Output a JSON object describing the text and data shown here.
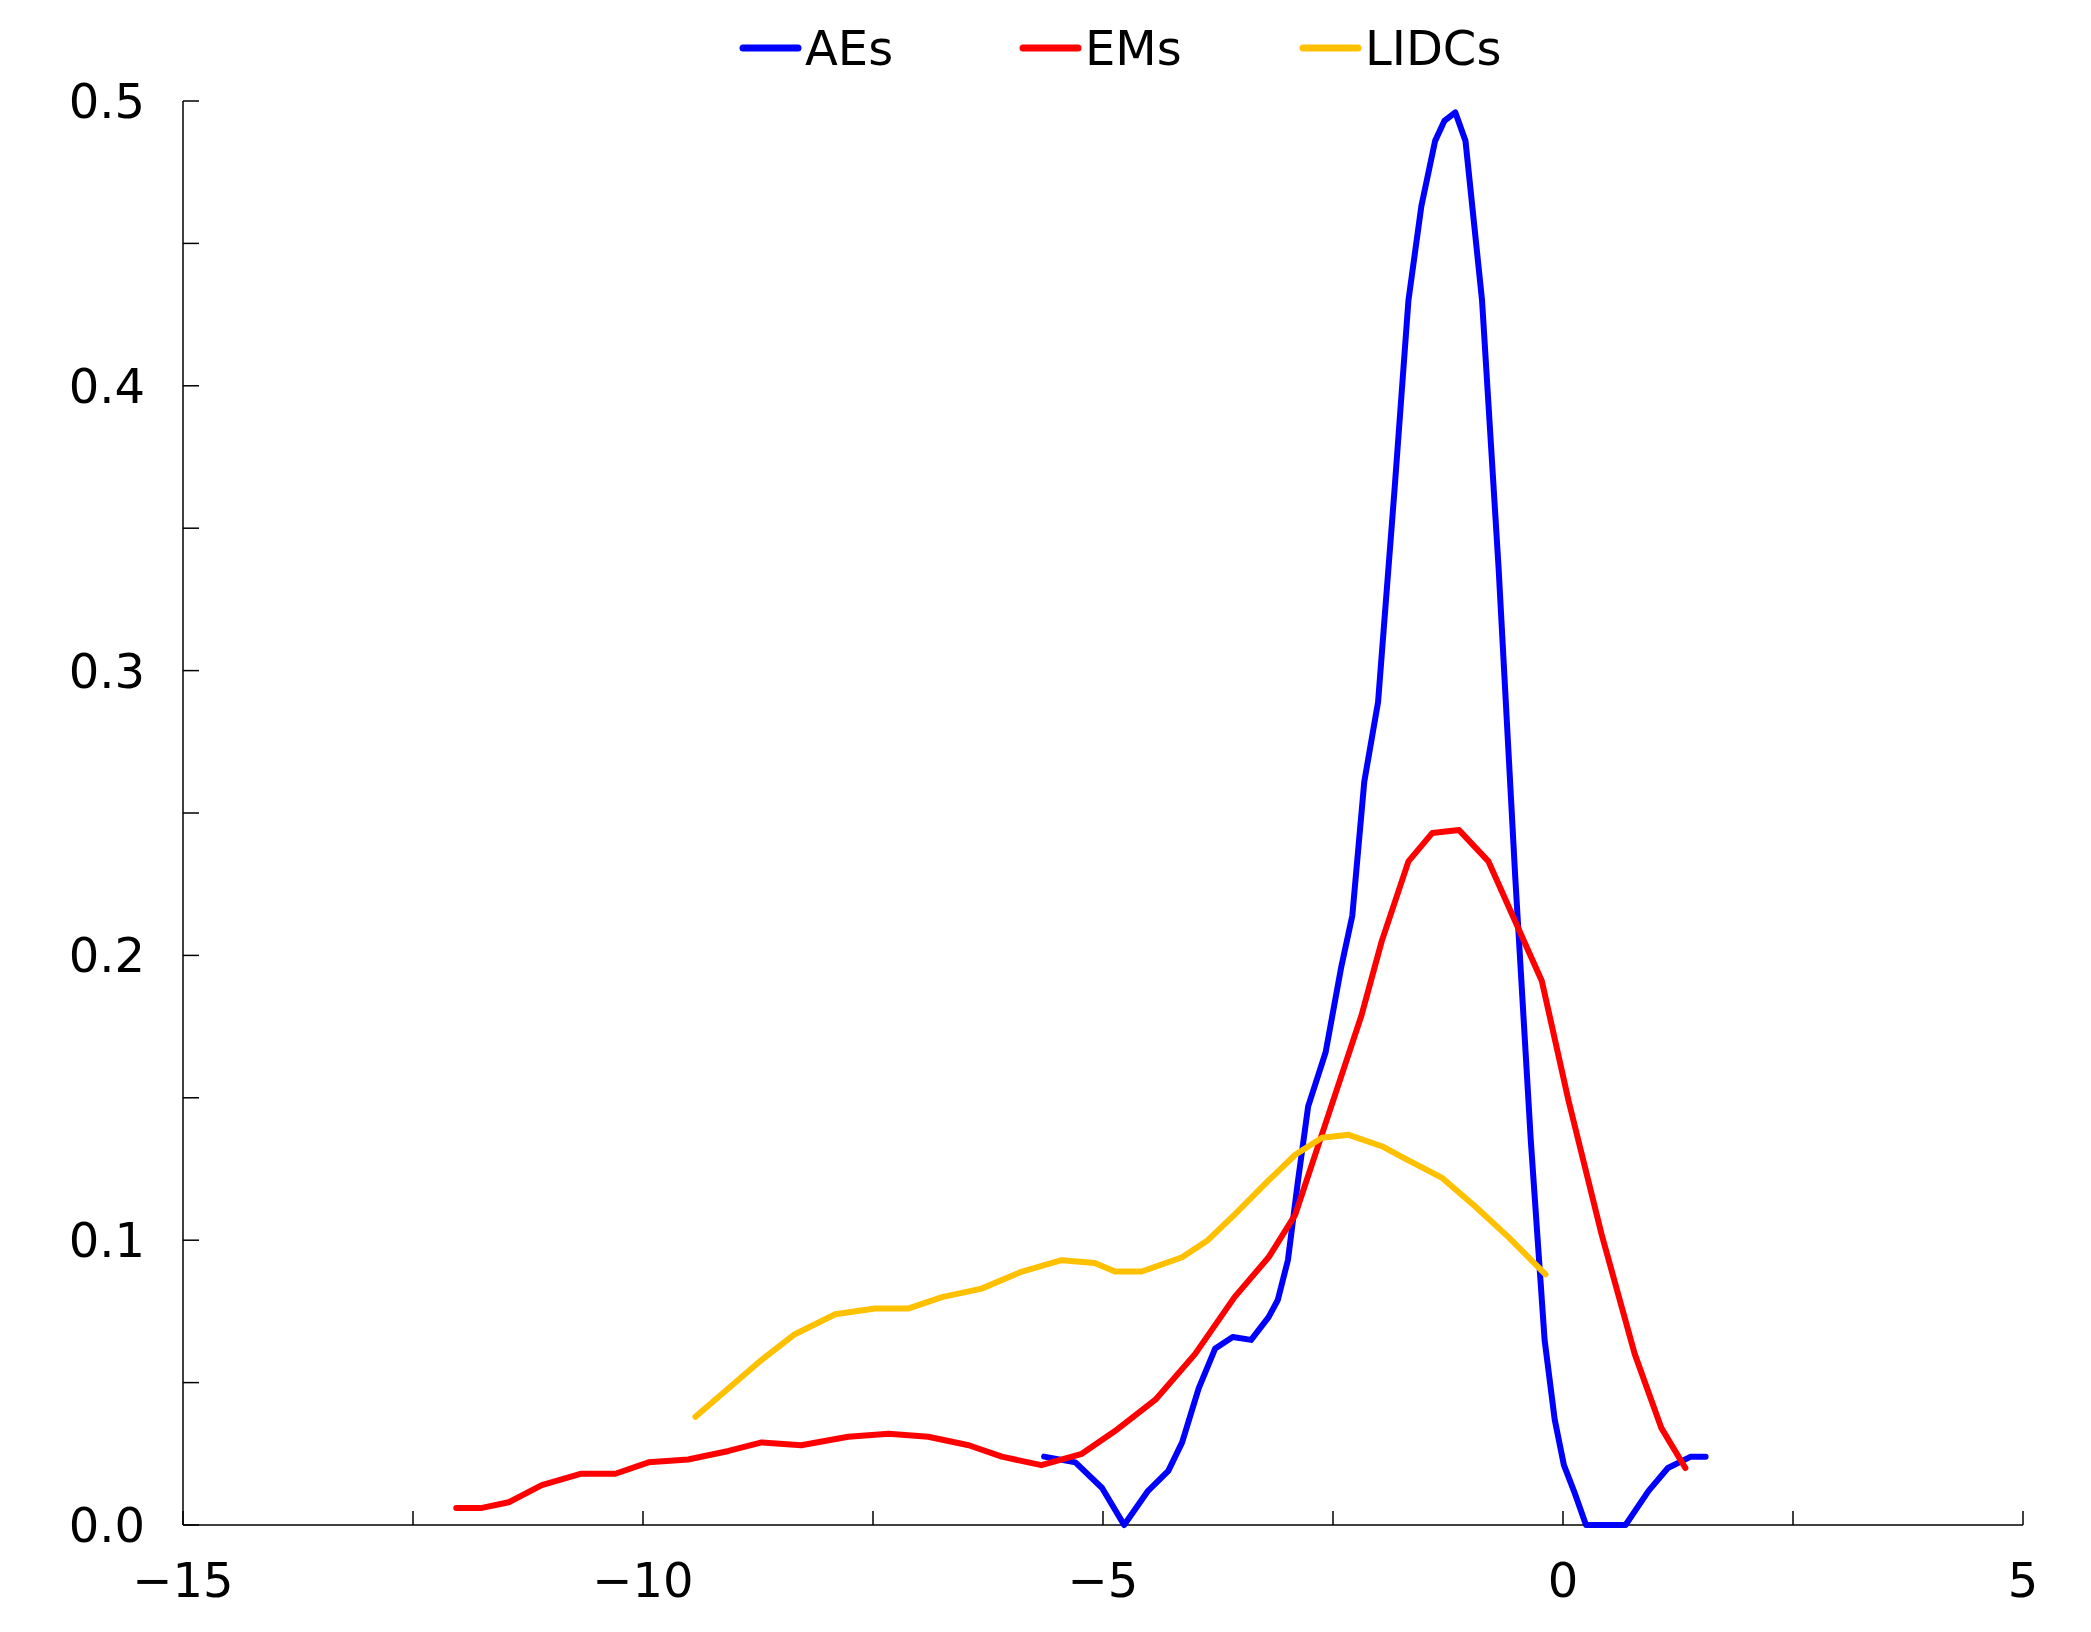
{
  "chart_data": {
    "type": "line",
    "legend": "top",
    "marker": "none",
    "line_style": "solid",
    "grid": false,
    "xlim": [
      -15,
      5
    ],
    "ylim": [
      0,
      0.5
    ],
    "xticks": [
      {
        "value": -15,
        "label": "−15"
      },
      {
        "value": -12.5,
        "label": null
      },
      {
        "value": -10,
        "label": "−10"
      },
      {
        "value": -7.5,
        "label": null
      },
      {
        "value": -5,
        "label": "−5"
      },
      {
        "value": -2.5,
        "label": null
      },
      0,
      {
        "value": 2.5,
        "label": null
      },
      5
    ],
    "yticks": [
      {
        "value": 0,
        "label": "0.0"
      },
      {
        "value": 0.05,
        "label": null
      },
      0.1,
      {
        "value": 0.15,
        "label": null
      },
      0.2,
      {
        "value": 0.25,
        "label": null
      },
      0.3,
      {
        "value": 0.35,
        "label": null
      },
      0.4,
      {
        "value": 0.45,
        "label": null
      },
      0.5
    ],
    "series": [
      {
        "name": "AEs",
        "color": "#0000ff",
        "x": [
          -5.64,
          -5.3,
          -5.01,
          -4.77,
          -4.51,
          -4.29,
          -4.14,
          -3.96,
          -3.78,
          -3.59,
          -3.39,
          -3.2,
          -3.1,
          -2.99,
          -2.88,
          -2.77,
          -2.58,
          -2.41,
          -2.29,
          -2.16,
          -2.01,
          -1.83,
          -1.68,
          -1.54,
          -1.39,
          -1.29,
          -1.17,
          -1.06,
          -0.88,
          -0.7,
          -0.52,
          -0.35,
          -0.2,
          -0.09,
          0.01,
          0.13,
          0.25,
          0.68,
          0.93,
          1.14,
          1.39,
          1.55
        ],
        "values": [
          0.024,
          0.022,
          0.013,
          0.0,
          0.012,
          0.019,
          0.029,
          0.048,
          0.062,
          0.066,
          0.065,
          0.073,
          0.079,
          0.093,
          0.121,
          0.147,
          0.166,
          0.196,
          0.214,
          0.261,
          0.289,
          0.364,
          0.43,
          0.463,
          0.486,
          0.493,
          0.496,
          0.486,
          0.43,
          0.336,
          0.228,
          0.135,
          0.065,
          0.037,
          0.021,
          0.011,
          0.0,
          0.0,
          0.012,
          0.02,
          0.024,
          0.024
        ]
      },
      {
        "name": "EMs",
        "color": "#ff0000",
        "x": [
          -12.03,
          -11.75,
          -11.46,
          -11.1,
          -10.67,
          -10.3,
          -9.94,
          -9.51,
          -9.07,
          -8.71,
          -8.28,
          -7.77,
          -7.33,
          -6.9,
          -6.46,
          -6.1,
          -5.67,
          -5.23,
          -4.87,
          -4.43,
          -4.0,
          -3.57,
          -3.2,
          -2.91,
          -2.55,
          -2.19,
          -1.97,
          -1.68,
          -1.42,
          -1.13,
          -0.81,
          -0.52,
          -0.23,
          0.06,
          0.42,
          0.78,
          1.07,
          1.33
        ],
        "values": [
          0.006,
          0.006,
          0.008,
          0.014,
          0.018,
          0.018,
          0.022,
          0.023,
          0.026,
          0.029,
          0.028,
          0.031,
          0.032,
          0.031,
          0.028,
          0.024,
          0.021,
          0.025,
          0.033,
          0.044,
          0.06,
          0.08,
          0.094,
          0.109,
          0.144,
          0.179,
          0.205,
          0.233,
          0.243,
          0.244,
          0.233,
          0.212,
          0.191,
          0.149,
          0.102,
          0.06,
          0.034,
          0.02
        ]
      },
      {
        "name": "LIDCs",
        "color": "#ffc000",
        "x": [
          -9.43,
          -9.07,
          -8.71,
          -8.35,
          -7.91,
          -7.48,
          -7.12,
          -6.75,
          -6.32,
          -5.88,
          -5.45,
          -5.09,
          -4.87,
          -4.58,
          -4.14,
          -3.86,
          -3.57,
          -3.2,
          -2.91,
          -2.62,
          -2.33,
          -1.97,
          -1.68,
          -1.32,
          -0.96,
          -0.59,
          -0.19
        ],
        "values": [
          0.038,
          0.048,
          0.058,
          0.067,
          0.074,
          0.076,
          0.076,
          0.08,
          0.083,
          0.089,
          0.093,
          0.092,
          0.089,
          0.089,
          0.094,
          0.1,
          0.109,
          0.121,
          0.13,
          0.136,
          0.137,
          0.133,
          0.128,
          0.122,
          0.112,
          0.101,
          0.088
        ]
      }
    ]
  }
}
